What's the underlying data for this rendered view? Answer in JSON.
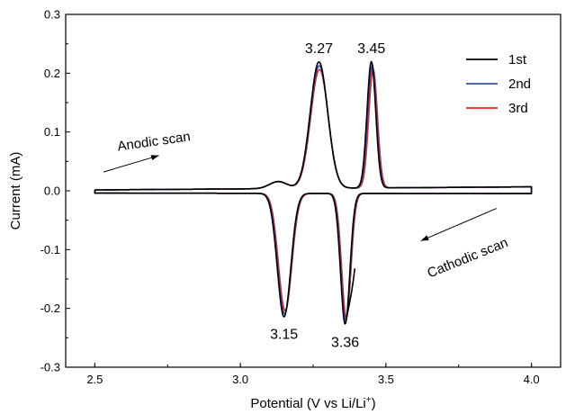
{
  "chart_data": {
    "type": "line",
    "xlabel": "Potential (V vs Li/Li",
    "xlabel_sup": "+",
    "xlabel_end": ")",
    "ylabel": "Current (mA)",
    "xlim": [
      2.4,
      4.1
    ],
    "ylim": [
      -0.3,
      0.3
    ],
    "xticks": [
      "2.5",
      "3.0",
      "3.5",
      "4.0"
    ],
    "xtick_values": [
      2.5,
      3.0,
      3.5,
      4.0
    ],
    "yticks": [
      "-0.3",
      "-0.2",
      "-0.1",
      "0.0",
      "0.1",
      "0.2",
      "0.3"
    ],
    "ytick_values": [
      -0.3,
      -0.2,
      -0.1,
      0.0,
      0.1,
      0.2,
      0.3
    ],
    "legend_position": "top-right",
    "series": [
      {
        "name": "1st",
        "color": "#000000"
      },
      {
        "name": "2nd",
        "color": "#3b4fa8"
      },
      {
        "name": "3rd",
        "color": "#e8262b"
      }
    ],
    "peak_labels": [
      {
        "text": "3.27",
        "x": 3.27,
        "y": 0.222
      },
      {
        "text": "3.45",
        "x": 3.45,
        "y": 0.222
      },
      {
        "text": "3.15",
        "x": 3.15,
        "y": -0.218
      },
      {
        "text": "3.36",
        "x": 3.36,
        "y": -0.232
      }
    ],
    "annotations": {
      "anodic": "Anodic scan",
      "cathodic": "Cathodic scan"
    },
    "arrows": [
      {
        "from": [
          2.53,
          0.032
        ],
        "to": [
          2.72,
          0.06
        ]
      },
      {
        "from": [
          3.88,
          -0.03
        ],
        "to": [
          3.62,
          -0.085
        ]
      }
    ],
    "peaks": {
      "anodic": [
        {
          "center": 3.27,
          "height": 0.215,
          "width": 0.03
        },
        {
          "center": 3.45,
          "height": 0.215,
          "width": 0.015
        }
      ],
      "cathodic": [
        {
          "center": 3.15,
          "height": 0.21,
          "width": 0.023
        },
        {
          "center": 3.36,
          "height": 0.222,
          "width": 0.016
        }
      ]
    }
  }
}
